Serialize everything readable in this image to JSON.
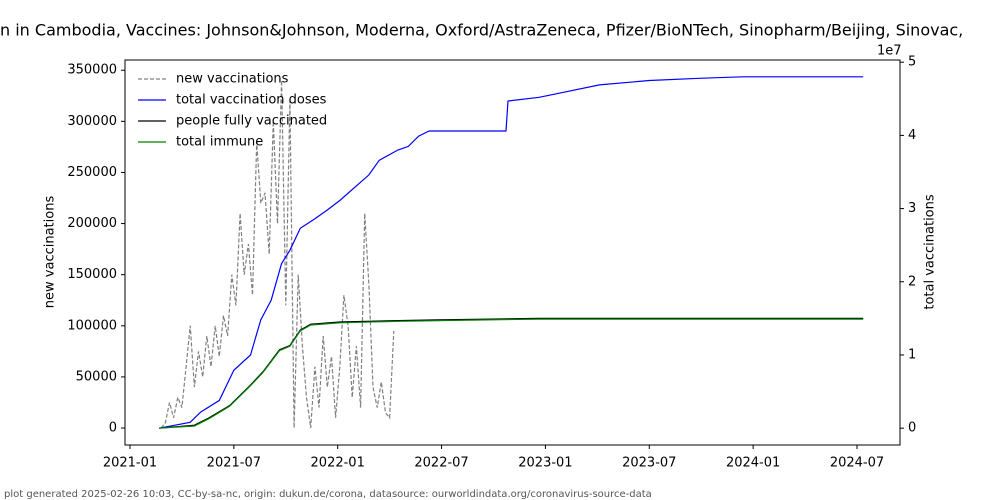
{
  "chart_data": {
    "type": "line",
    "title": "n in Cambodia, Vaccines: Johnson&Johnson, Moderna, Oxford/AstraZeneca, Pfizer/BioNTech, Sinopharm/Beijing, Sinovac,",
    "ylabel": "new vaccinations",
    "y2label": "total vaccinations",
    "y2_scale_label": "1e7",
    "footer": "plot generated 2025-02-26 10:03, CC-by-sa-nc, origin: dukun.de/corona, datasource: ourworldindata.org/coronavirus-source-data",
    "xlim": [
      2020.976,
      2024.707
    ],
    "xticks": [
      {
        "value": 2021.0,
        "label": "2021-01"
      },
      {
        "value": 2021.5,
        "label": "2021-07"
      },
      {
        "value": 2022.0,
        "label": "2022-01"
      },
      {
        "value": 2022.5,
        "label": "2022-07"
      },
      {
        "value": 2023.0,
        "label": "2023-01"
      },
      {
        "value": 2023.5,
        "label": "2023-07"
      },
      {
        "value": 2024.0,
        "label": "2024-01"
      },
      {
        "value": 2024.5,
        "label": "2024-07"
      }
    ],
    "ylim": [
      -16600,
      360000
    ],
    "yticks": [
      0,
      50000,
      100000,
      150000,
      200000,
      250000,
      300000,
      350000
    ],
    "y2lim": [
      -0.23,
      5.03
    ],
    "y2ticks": [
      0,
      1,
      2,
      3,
      4,
      5
    ],
    "legend": "upper left",
    "series": [
      {
        "name": "new vaccinations",
        "color": "#808080",
        "dashed": true,
        "x": [
          2021.15,
          2021.17,
          2021.19,
          2021.21,
          2021.23,
          2021.25,
          2021.27,
          2021.29,
          2021.31,
          2021.33,
          2021.35,
          2021.37,
          2021.39,
          2021.41,
          2021.43,
          2021.45,
          2021.47,
          2021.49,
          2021.51,
          2021.53,
          2021.55,
          2021.57,
          2021.59,
          2021.61,
          2021.63,
          2021.65,
          2021.67,
          2021.69,
          2021.71,
          2021.73,
          2021.75,
          2021.77,
          2021.79,
          2021.81,
          2021.83,
          2021.85,
          2021.87,
          2021.89,
          2021.91,
          2021.93,
          2021.95,
          2021.97,
          2021.99,
          2022.01,
          2022.03,
          2022.05,
          2022.07,
          2022.09,
          2022.11,
          2022.13,
          2022.15,
          2022.17,
          2022.19,
          2022.21,
          2022.23,
          2022.25,
          2022.27
        ],
        "values": [
          0,
          5000,
          25000,
          10000,
          30000,
          20000,
          60000,
          100000,
          40000,
          75000,
          50000,
          90000,
          60000,
          100000,
          70000,
          110000,
          90000,
          150000,
          120000,
          210000,
          150000,
          180000,
          130000,
          280000,
          220000,
          230000,
          170000,
          300000,
          200000,
          340000,
          120000,
          320000,
          0,
          150000,
          80000,
          30000,
          0,
          60000,
          20000,
          90000,
          40000,
          70000,
          10000,
          60000,
          130000,
          100000,
          30000,
          80000,
          20000,
          210000,
          140000,
          40000,
          20000,
          45000,
          15000,
          10000,
          95000
        ]
      },
      {
        "name": "total vaccination doses",
        "color": "#0000ff",
        "axis": "y2",
        "x": [
          2021.14,
          2021.29,
          2021.34,
          2021.43,
          2021.5,
          2021.58,
          2021.63,
          2021.68,
          2021.73,
          2021.77,
          2021.82,
          2021.89,
          2021.95,
          2022.01,
          2022.15,
          2022.2,
          2022.29,
          2022.34,
          2022.39,
          2022.44,
          2022.81,
          2022.82,
          2022.97,
          2023.09,
          2023.26,
          2023.5,
          2023.74,
          2023.95,
          2024.53
        ],
        "values": [
          0,
          0.08,
          0.22,
          0.38,
          0.79,
          1.0,
          1.48,
          1.75,
          2.25,
          2.43,
          2.73,
          2.86,
          2.98,
          3.11,
          3.46,
          3.66,
          3.8,
          3.85,
          3.99,
          4.06,
          4.06,
          4.47,
          4.52,
          4.59,
          4.69,
          4.75,
          4.78,
          4.8,
          4.8
        ]
      },
      {
        "name": "people fully vaccinated",
        "color": "#000000",
        "axis": "y2",
        "x": [
          2021.14,
          2021.31,
          2021.38,
          2021.48,
          2021.58,
          2021.64,
          2021.72,
          2021.77,
          2021.82,
          2021.87,
          2022.01,
          2022.29,
          2022.48,
          2022.96,
          2024.53
        ],
        "values": [
          0,
          0.04,
          0.14,
          0.31,
          0.59,
          0.77,
          1.07,
          1.13,
          1.34,
          1.42,
          1.45,
          1.47,
          1.48,
          1.5,
          1.5
        ]
      },
      {
        "name": "total immune",
        "color": "#008000",
        "axis": "y2",
        "x": [
          2021.14,
          2021.31,
          2021.38,
          2021.48,
          2021.58,
          2021.64,
          2021.72,
          2021.77,
          2021.82,
          2021.87,
          2022.01,
          2022.29,
          2022.48,
          2022.96,
          2024.53
        ],
        "values": [
          0,
          0.03,
          0.13,
          0.3,
          0.58,
          0.76,
          1.06,
          1.12,
          1.33,
          1.41,
          1.44,
          1.46,
          1.47,
          1.49,
          1.49
        ]
      }
    ]
  }
}
